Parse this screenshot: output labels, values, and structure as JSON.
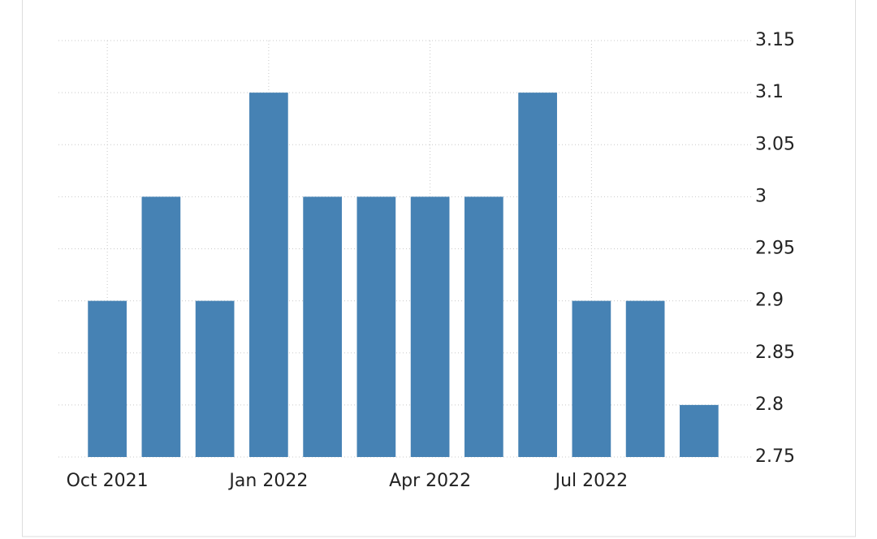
{
  "chart_data": {
    "type": "bar",
    "categories": [
      "Oct 2021",
      null,
      null,
      "Jan 2022",
      null,
      null,
      "Apr 2022",
      null,
      null,
      "Jul 2022",
      null,
      null
    ],
    "values": [
      2.9,
      3.0,
      2.9,
      3.1,
      3.0,
      3.0,
      3.0,
      3.0,
      3.1,
      2.9,
      2.9,
      2.8
    ],
    "color": "#4682b4",
    "ylim": [
      2.75,
      3.15
    ],
    "yticks": [
      2.75,
      2.8,
      2.85,
      2.9,
      2.95,
      3,
      3.05,
      3.1,
      3.15
    ],
    "grid": true,
    "y_axis_side": "right"
  }
}
